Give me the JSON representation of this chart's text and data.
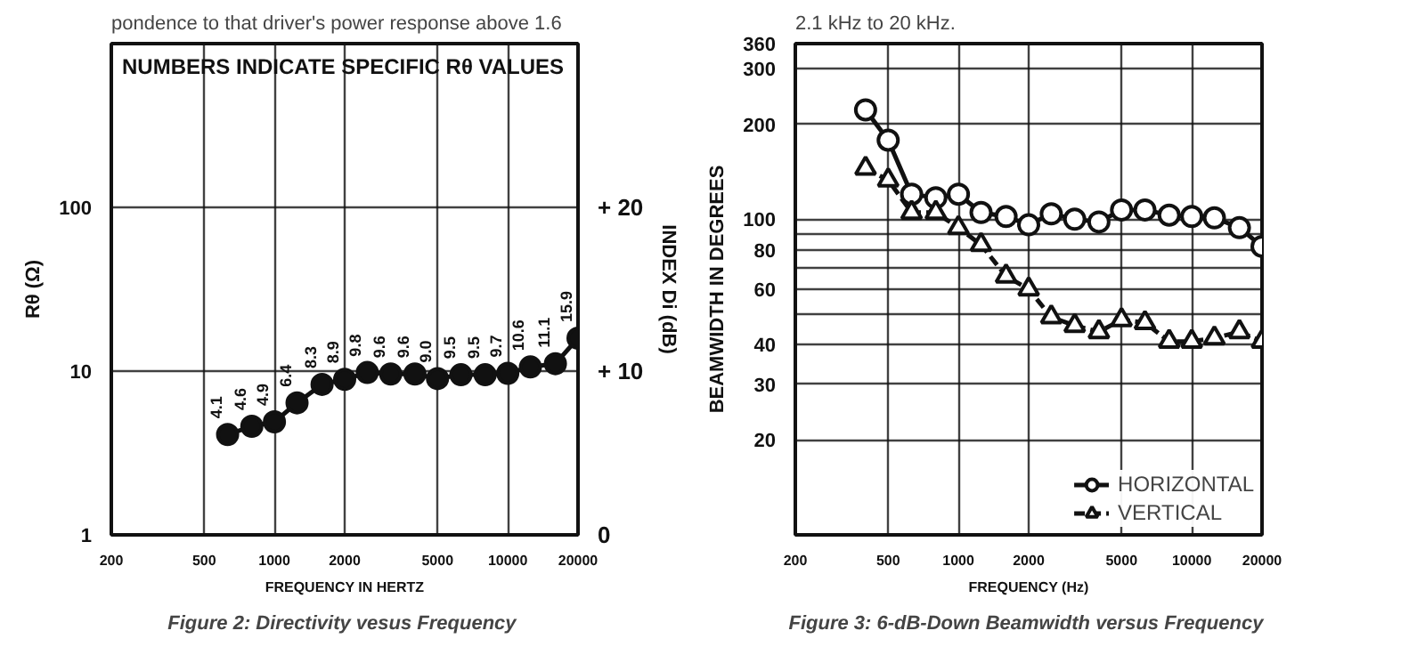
{
  "chart_data": [
    {
      "type": "line",
      "title": "Figure 2:  Directivity vesus Frequency",
      "xlabel": "FREQUENCY IN HERTZ",
      "ylabel": "Rθ (Ω)",
      "y2label": "INDEX Di (dB)",
      "annotations": [
        "pondence to that driver's power response above 1.6",
        "NUMBERS INDICATE SPECIFIC Rθ VALUES"
      ],
      "x": [
        630,
        800,
        1000,
        1250,
        1600,
        2000,
        2500,
        3150,
        4000,
        5000,
        6300,
        8000,
        10000,
        12500,
        16000,
        20000
      ],
      "series": [
        {
          "color": "#111111",
          "values": [
            4.1,
            4.6,
            4.9,
            6.4,
            8.3,
            8.9,
            9.8,
            9.6,
            9.6,
            9.0,
            9.5,
            9.5,
            9.7,
            10.6,
            11.1,
            15.9
          ],
          "value_labels": [
            "4.1",
            "4.6",
            "4.9",
            "6.4",
            "8.3",
            "8.9",
            "9.8",
            "9.6",
            "9.6",
            "9.0",
            "9.5",
            "9.5",
            "9.7",
            "10.6",
            "11.1",
            "15.9"
          ]
        }
      ],
      "xlim": [
        200,
        20000
      ],
      "ylim": [
        1,
        1000
      ],
      "y2lim": [
        0,
        30
      ],
      "xticks": [
        200,
        500,
        1000,
        2000,
        5000,
        10000,
        20000
      ],
      "yticks": [
        1,
        10,
        100
      ],
      "y2ticks": [
        0,
        {
          "value": 10,
          "label": "+ 10"
        },
        {
          "value": 20,
          "label": "+ 20"
        }
      ],
      "log": "xy",
      "grid": true,
      "marker": "circle",
      "line_style": "solid"
    },
    {
      "type": "line",
      "title": "Figure 3:  6-dB-Down Beamwidth versus Frequency",
      "xlabel": "FREQUENCY (Hz)",
      "ylabel": "BEAMWIDTH IN DEGREES",
      "annotations": [
        "2.1 kHz to 20 kHz."
      ],
      "x": [
        400,
        500,
        630,
        800,
        1000,
        1250,
        1600,
        2000,
        2500,
        3150,
        4000,
        5000,
        6300,
        8000,
        10000,
        12500,
        16000,
        20000
      ],
      "series": [
        {
          "name": "HORIZONTAL",
          "color": "#111111",
          "marker": "circle",
          "line_style": "solid",
          "values": [
            222,
            178,
            120,
            117,
            120,
            105,
            102,
            96,
            104,
            100,
            98,
            107,
            107,
            103,
            102,
            101,
            94,
            82
          ]
        },
        {
          "name": "VERTICAL",
          "color": "#111111",
          "marker": "triangle",
          "line_style": "dashed",
          "values": [
            145,
            133,
            105,
            105,
            94,
            83,
            66,
            60,
            49,
            46,
            44,
            48,
            47,
            41,
            41,
            42,
            44,
            41
          ]
        }
      ],
      "xlim": [
        200,
        20000
      ],
      "ylim": [
        10,
        360
      ],
      "xticks": [
        200,
        500,
        1000,
        2000,
        5000,
        10000,
        20000
      ],
      "yticks": [
        20,
        30,
        40,
        {
          "value": 50,
          "label": null
        },
        60,
        {
          "value": 70,
          "label": null
        },
        80,
        {
          "value": 90,
          "label": null
        },
        100,
        200,
        300,
        360
      ],
      "log": "xy",
      "grid": true,
      "legend": "bottom right"
    }
  ]
}
